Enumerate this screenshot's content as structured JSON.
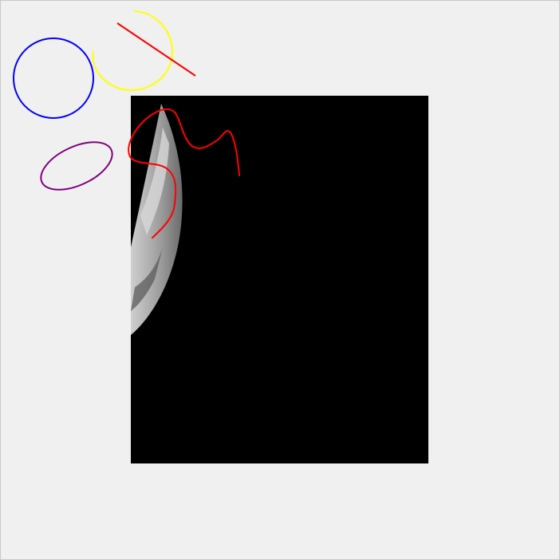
{
  "canvas": {
    "background": "#f0f0f0",
    "border_color": "#c8c8c8"
  },
  "image": {
    "description_name": "grayscale-scan",
    "background": "#000000"
  },
  "annotations": {
    "blue_circle": {
      "color": "#0000ff"
    },
    "yellow_arc": {
      "color": "#ffff00"
    },
    "red_line": {
      "color": "#ff0000"
    },
    "purple_ellipse": {
      "color": "#800080"
    },
    "red_freehand": {
      "color": "#ff0000"
    }
  }
}
